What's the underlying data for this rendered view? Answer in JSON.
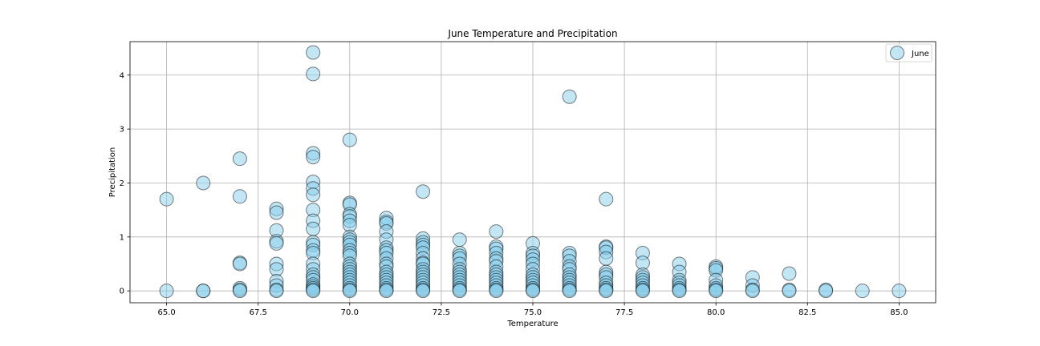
{
  "chart_data": {
    "type": "scatter",
    "title": "June Temperature and Precipitation",
    "xlabel": "Temperature",
    "ylabel": "Precipitation",
    "xlim": [
      64.0,
      86.0
    ],
    "ylim": [
      -0.22,
      4.62
    ],
    "x_ticks": [
      "65.0",
      "67.5",
      "70.0",
      "72.5",
      "75.0",
      "77.5",
      "80.0",
      "82.5",
      "85.0"
    ],
    "x_tick_values": [
      65.0,
      67.5,
      70.0,
      72.5,
      75.0,
      77.5,
      80.0,
      82.5,
      85.0
    ],
    "y_ticks": [
      "0",
      "1",
      "2",
      "3",
      "4"
    ],
    "y_tick_values": [
      0,
      1,
      2,
      3,
      4
    ],
    "grid": true,
    "legend_position": "top-right",
    "marker_color": "#87CEEB",
    "edge_color": "#000000",
    "series": [
      {
        "name": "June",
        "points": [
          [
            65,
            1.7
          ],
          [
            65,
            0.0
          ],
          [
            66,
            2.0
          ],
          [
            66,
            0.0
          ],
          [
            66,
            0.0
          ],
          [
            67,
            2.45
          ],
          [
            67,
            1.75
          ],
          [
            67,
            0.52
          ],
          [
            67,
            0.5
          ],
          [
            67,
            0.05
          ],
          [
            67,
            0.02
          ],
          [
            67,
            0.0
          ],
          [
            68,
            1.52
          ],
          [
            68,
            1.45
          ],
          [
            68,
            1.12
          ],
          [
            68,
            0.92
          ],
          [
            68,
            0.88
          ],
          [
            68,
            0.5
          ],
          [
            68,
            0.4
          ],
          [
            68,
            0.18
          ],
          [
            68,
            0.1
          ],
          [
            68,
            0.02
          ],
          [
            68,
            0.0
          ],
          [
            69,
            4.42
          ],
          [
            69,
            4.02
          ],
          [
            69,
            2.55
          ],
          [
            69,
            2.48
          ],
          [
            69,
            2.02
          ],
          [
            69,
            1.9
          ],
          [
            69,
            1.78
          ],
          [
            69,
            1.5
          ],
          [
            69,
            1.3
          ],
          [
            69,
            1.15
          ],
          [
            69,
            0.9
          ],
          [
            69,
            0.85
          ],
          [
            69,
            0.75
          ],
          [
            69,
            0.7
          ],
          [
            69,
            0.5
          ],
          [
            69,
            0.4
          ],
          [
            69,
            0.3
          ],
          [
            69,
            0.25
          ],
          [
            69,
            0.2
          ],
          [
            69,
            0.12
          ],
          [
            69,
            0.08
          ],
          [
            69,
            0.05
          ],
          [
            69,
            0.02
          ],
          [
            69,
            0.0
          ],
          [
            70,
            2.8
          ],
          [
            70,
            1.63
          ],
          [
            70,
            1.6
          ],
          [
            70,
            1.42
          ],
          [
            70,
            1.38
          ],
          [
            70,
            1.3
          ],
          [
            70,
            1.22
          ],
          [
            70,
            1.0
          ],
          [
            70,
            0.95
          ],
          [
            70,
            0.9
          ],
          [
            70,
            0.85
          ],
          [
            70,
            0.75
          ],
          [
            70,
            0.7
          ],
          [
            70,
            0.65
          ],
          [
            70,
            0.5
          ],
          [
            70,
            0.45
          ],
          [
            70,
            0.4
          ],
          [
            70,
            0.35
          ],
          [
            70,
            0.3
          ],
          [
            70,
            0.25
          ],
          [
            70,
            0.2
          ],
          [
            70,
            0.15
          ],
          [
            70,
            0.1
          ],
          [
            70,
            0.05
          ],
          [
            70,
            0.02
          ],
          [
            70,
            0.0
          ],
          [
            71,
            1.35
          ],
          [
            71,
            1.28
          ],
          [
            71,
            1.25
          ],
          [
            71,
            1.1
          ],
          [
            71,
            0.95
          ],
          [
            71,
            0.8
          ],
          [
            71,
            0.75
          ],
          [
            71,
            0.7
          ],
          [
            71,
            0.6
          ],
          [
            71,
            0.5
          ],
          [
            71,
            0.45
          ],
          [
            71,
            0.35
          ],
          [
            71,
            0.3
          ],
          [
            71,
            0.25
          ],
          [
            71,
            0.2
          ],
          [
            71,
            0.15
          ],
          [
            71,
            0.1
          ],
          [
            71,
            0.05
          ],
          [
            71,
            0.02
          ],
          [
            71,
            0.0
          ],
          [
            72,
            1.84
          ],
          [
            72,
            0.97
          ],
          [
            72,
            0.9
          ],
          [
            72,
            0.85
          ],
          [
            72,
            0.8
          ],
          [
            72,
            0.7
          ],
          [
            72,
            0.6
          ],
          [
            72,
            0.52
          ],
          [
            72,
            0.5
          ],
          [
            72,
            0.4
          ],
          [
            72,
            0.35
          ],
          [
            72,
            0.3
          ],
          [
            72,
            0.25
          ],
          [
            72,
            0.2
          ],
          [
            72,
            0.15
          ],
          [
            72,
            0.1
          ],
          [
            72,
            0.05
          ],
          [
            72,
            0.02
          ],
          [
            72,
            0.0
          ],
          [
            73,
            0.95
          ],
          [
            73,
            0.7
          ],
          [
            73,
            0.65
          ],
          [
            73,
            0.6
          ],
          [
            73,
            0.5
          ],
          [
            73,
            0.4
          ],
          [
            73,
            0.35
          ],
          [
            73,
            0.3
          ],
          [
            73,
            0.25
          ],
          [
            73,
            0.2
          ],
          [
            73,
            0.15
          ],
          [
            73,
            0.1
          ],
          [
            73,
            0.05
          ],
          [
            73,
            0.02
          ],
          [
            73,
            0.0
          ],
          [
            74,
            1.1
          ],
          [
            74,
            0.82
          ],
          [
            74,
            0.78
          ],
          [
            74,
            0.7
          ],
          [
            74,
            0.6
          ],
          [
            74,
            0.55
          ],
          [
            74,
            0.45
          ],
          [
            74,
            0.35
          ],
          [
            74,
            0.3
          ],
          [
            74,
            0.25
          ],
          [
            74,
            0.2
          ],
          [
            74,
            0.15
          ],
          [
            74,
            0.1
          ],
          [
            74,
            0.05
          ],
          [
            74,
            0.02
          ],
          [
            74,
            0.0
          ],
          [
            75,
            0.88
          ],
          [
            75,
            0.7
          ],
          [
            75,
            0.65
          ],
          [
            75,
            0.58
          ],
          [
            75,
            0.5
          ],
          [
            75,
            0.4
          ],
          [
            75,
            0.3
          ],
          [
            75,
            0.25
          ],
          [
            75,
            0.2
          ],
          [
            75,
            0.15
          ],
          [
            75,
            0.1
          ],
          [
            75,
            0.05
          ],
          [
            75,
            0.02
          ],
          [
            75,
            0.0
          ],
          [
            76,
            3.6
          ],
          [
            76,
            0.7
          ],
          [
            76,
            0.65
          ],
          [
            76,
            0.55
          ],
          [
            76,
            0.45
          ],
          [
            76,
            0.4
          ],
          [
            76,
            0.3
          ],
          [
            76,
            0.25
          ],
          [
            76,
            0.2
          ],
          [
            76,
            0.15
          ],
          [
            76,
            0.1
          ],
          [
            76,
            0.05
          ],
          [
            76,
            0.02
          ],
          [
            76,
            0.0
          ],
          [
            77,
            1.7
          ],
          [
            77,
            0.82
          ],
          [
            77,
            0.8
          ],
          [
            77,
            0.72
          ],
          [
            77,
            0.6
          ],
          [
            77,
            0.35
          ],
          [
            77,
            0.3
          ],
          [
            77,
            0.25
          ],
          [
            77,
            0.15
          ],
          [
            77,
            0.1
          ],
          [
            77,
            0.05
          ],
          [
            77,
            0.02
          ],
          [
            77,
            0.0
          ],
          [
            78,
            0.7
          ],
          [
            78,
            0.52
          ],
          [
            78,
            0.3
          ],
          [
            78,
            0.25
          ],
          [
            78,
            0.2
          ],
          [
            78,
            0.15
          ],
          [
            78,
            0.1
          ],
          [
            78,
            0.05
          ],
          [
            78,
            0.02
          ],
          [
            78,
            0.0
          ],
          [
            79,
            0.5
          ],
          [
            79,
            0.35
          ],
          [
            79,
            0.2
          ],
          [
            79,
            0.15
          ],
          [
            79,
            0.1
          ],
          [
            79,
            0.05
          ],
          [
            79,
            0.02
          ],
          [
            79,
            0.0
          ],
          [
            80,
            0.45
          ],
          [
            80,
            0.42
          ],
          [
            80,
            0.38
          ],
          [
            80,
            0.2
          ],
          [
            80,
            0.1
          ],
          [
            80,
            0.05
          ],
          [
            80,
            0.02
          ],
          [
            80,
            0.0
          ],
          [
            81,
            0.25
          ],
          [
            81,
            0.1
          ],
          [
            81,
            0.02
          ],
          [
            81,
            0.0
          ],
          [
            82,
            0.32
          ],
          [
            82,
            0.02
          ],
          [
            82,
            0.0
          ],
          [
            83,
            0.02
          ],
          [
            83,
            0.0
          ],
          [
            84,
            0.0
          ],
          [
            85,
            0.0
          ]
        ]
      }
    ]
  }
}
